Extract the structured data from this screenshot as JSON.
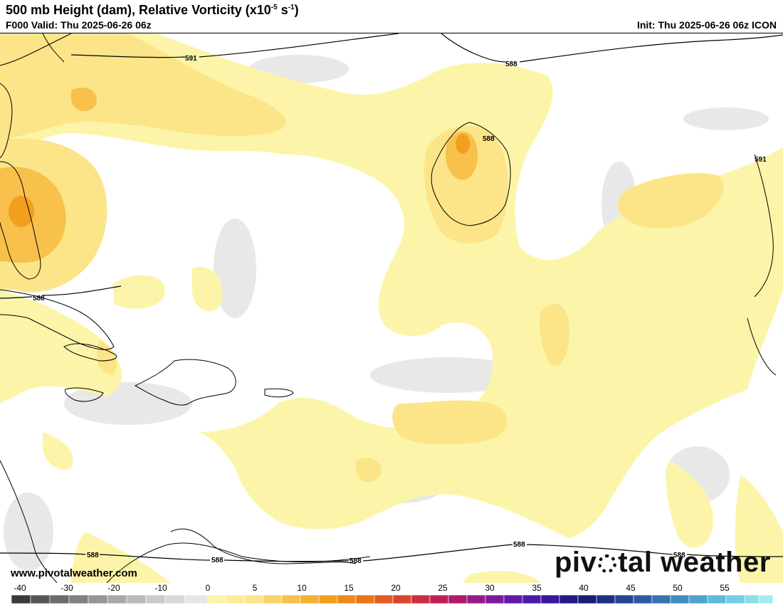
{
  "header": {
    "title_main": "500 mb Height (dam), Relative Vorticity (x10",
    "title_exp1": "-5",
    "title_mid": " s",
    "title_exp2": "-1",
    "title_end": ")",
    "valid": "F000 Valid: Thu 2025-06-26 06z",
    "init": "Init: Thu 2025-06-26 06z ICON"
  },
  "contours": {
    "l591_topleft": "591",
    "l588_top": "588",
    "l588_low": "588",
    "l591_right": "591",
    "l588_cuba": "588",
    "l588_sw": "588",
    "l588_s1": "588",
    "l588_s2": "588",
    "l588_s3": "588",
    "l588_se": "588"
  },
  "footer": {
    "website": "www.pivotalweather.com",
    "logo_pre": "piv",
    "logo_post": "tal weather"
  },
  "colorbar": {
    "labels": [
      "-40",
      "-30",
      "-20",
      "-10",
      "0",
      "5",
      "10",
      "15",
      "20",
      "25",
      "30",
      "35",
      "40",
      "45",
      "50",
      "55"
    ]
  },
  "colors": {
    "vort_light": "#fcf5a9",
    "vort_yellow": "#fbe588",
    "vort_orange": "#f7c14b",
    "vort_peak": "#f29f1f",
    "neg_gray": "#e6e6e6"
  }
}
